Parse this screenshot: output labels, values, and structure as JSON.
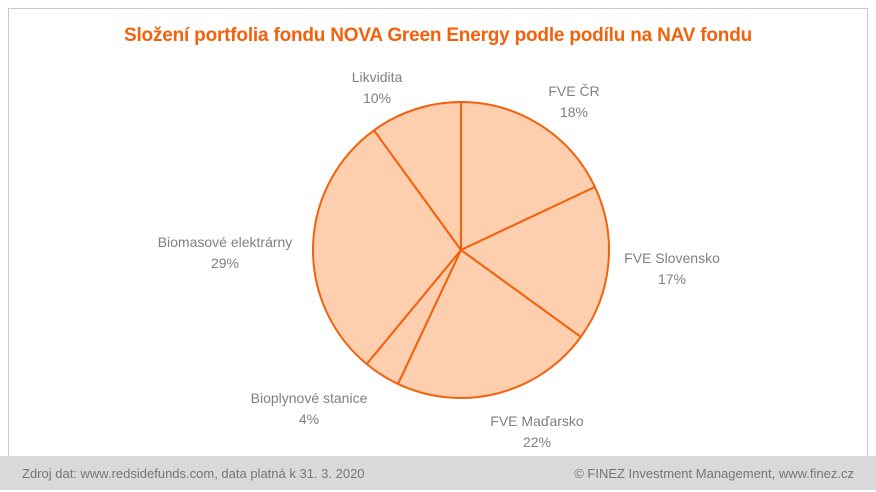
{
  "title": "Složení portfolia fondu NOVA Green Energy podle podílu na NAV fondu",
  "chart_data": {
    "type": "pie",
    "title": "Složení portfolia fondu NOVA Green Energy podle podílu na NAV fondu",
    "unit": "%",
    "start_angle_deg": 0,
    "direction": "clockwise",
    "legend_position": "none",
    "slices": [
      {
        "label": "FVE ČR",
        "value": 18,
        "pct": "18%"
      },
      {
        "label": "FVE Slovensko",
        "value": 17,
        "pct": "17%"
      },
      {
        "label": "FVE Maďarsko",
        "value": 22,
        "pct": "22%"
      },
      {
        "label": "Bioplynové stanice",
        "value": 4,
        "pct": "4%"
      },
      {
        "label": "Biomasové elektrárny",
        "value": 29,
        "pct": "29%"
      },
      {
        "label": "Likvidita",
        "value": 10,
        "pct": "10%"
      }
    ],
    "colors": {
      "slice_fill": "#fdcfae",
      "slice_stroke": "#f4610c"
    }
  },
  "colors": {
    "title_text": "#f4610c",
    "label_text": "#808080",
    "footer_bar": "#d9d9d9",
    "footer_text": "#767676",
    "border": "#c9c9c9"
  },
  "footer": {
    "source": "Zdroj dat: www.redsidefunds.com, data platná k 31. 3. 2020",
    "copyright": "© FINEZ Investment Management, www.finez.cz"
  }
}
